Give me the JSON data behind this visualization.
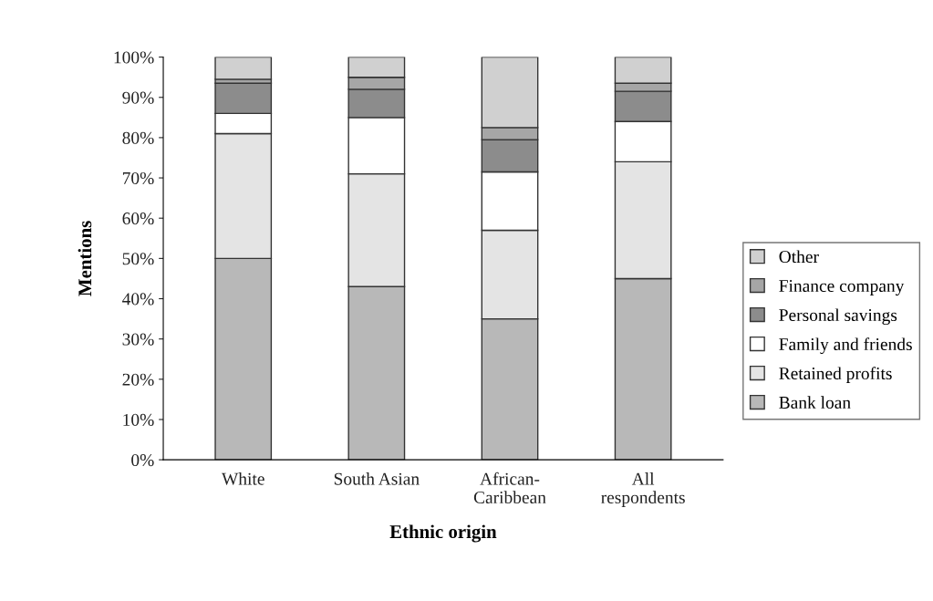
{
  "chart_data": {
    "type": "bar",
    "stacked": true,
    "xlabel": "Ethnic origin",
    "ylabel": "Mentions",
    "categories": [
      "White",
      "South Asian",
      "African-\nCaribbean",
      "All\nrespondents"
    ],
    "series": [
      {
        "name": "Bank loan",
        "color": "#b8b8b8",
        "values": [
          50,
          43,
          35,
          45
        ]
      },
      {
        "name": "Retained profits",
        "color": "#e4e4e4",
        "values": [
          31,
          28,
          22,
          29
        ]
      },
      {
        "name": "Family and friends",
        "color": "#ffffff",
        "values": [
          5,
          14,
          14.5,
          10
        ]
      },
      {
        "name": "Personal savings",
        "color": "#8c8c8c",
        "values": [
          7.5,
          7,
          8,
          7.5
        ]
      },
      {
        "name": "Finance company",
        "color": "#a6a6a6",
        "values": [
          1,
          3,
          3,
          2
        ]
      },
      {
        "name": "Other",
        "color": "#d0d0d0",
        "values": [
          5.5,
          5,
          17.5,
          6.5
        ]
      }
    ],
    "ylim": [
      0,
      100
    ],
    "yticks": [
      {
        "value": 0,
        "label": "0%"
      },
      {
        "value": 10,
        "label": "10%"
      },
      {
        "value": 20,
        "label": "20%"
      },
      {
        "value": 30,
        "label": "30%"
      },
      {
        "value": 40,
        "label": "40%"
      },
      {
        "value": 50,
        "label": "50%"
      },
      {
        "value": 60,
        "label": "60%"
      },
      {
        "value": 70,
        "label": "70%"
      },
      {
        "value": 80,
        "label": "80%"
      },
      {
        "value": 90,
        "label": "90%"
      },
      {
        "value": 100,
        "label": "100%"
      }
    ],
    "grid": false,
    "legend": "right"
  }
}
